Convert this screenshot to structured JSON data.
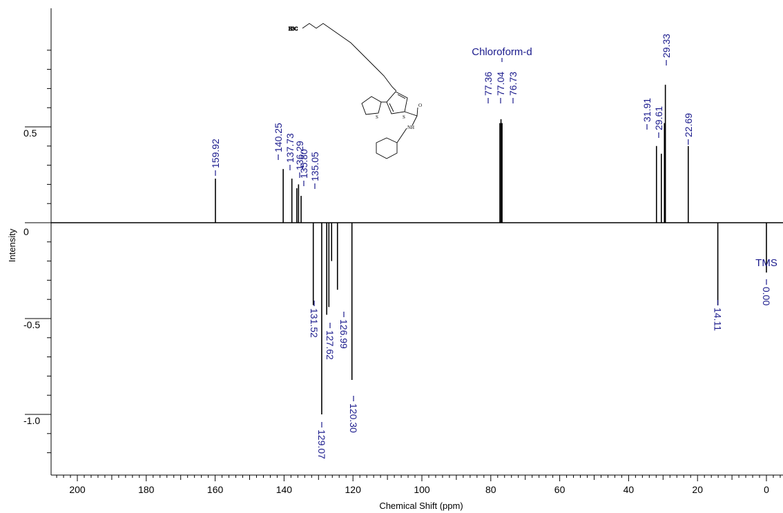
{
  "chart_data": {
    "type": "line",
    "xlabel": "Chemical Shift (ppm)",
    "ylabel": "Intensity",
    "xlim": [
      205,
      -5
    ],
    "ylim": [
      -1.25,
      1.1
    ],
    "x_ticks": [
      200,
      180,
      160,
      140,
      120,
      100,
      80,
      60,
      40,
      20,
      0
    ],
    "y_ticks": [
      {
        "value": 0.5,
        "label": "0.5"
      },
      {
        "value": 0,
        "label": "0"
      },
      {
        "value": -0.5,
        "label": "-0.5"
      },
      {
        "value": -1.0,
        "label": "-1.0"
      }
    ],
    "peaks": [
      {
        "ppm": 159.92,
        "intensity": 0.23,
        "label": "159.92"
      },
      {
        "ppm": 140.25,
        "intensity": 0.28,
        "label": "140.25"
      },
      {
        "ppm": 137.73,
        "intensity": 0.23,
        "label": "137.73"
      },
      {
        "ppm": 136.29,
        "intensity": 0.18,
        "label": "136.29"
      },
      {
        "ppm": 135.8,
        "intensity": 0.2,
        "label": "135.80"
      },
      {
        "ppm": 135.05,
        "intensity": 0.14,
        "label": "135.05"
      },
      {
        "ppm": 131.52,
        "intensity": -0.43,
        "label": "131.52"
      },
      {
        "ppm": 129.07,
        "intensity": -1.0,
        "label": "129.07"
      },
      {
        "ppm": 127.62,
        "intensity": -0.48,
        "label": "127.62"
      },
      {
        "ppm": 126.99,
        "intensity": -0.44,
        "label": "126.99"
      },
      {
        "ppm": 126.2,
        "intensity": -0.2,
        "label": ""
      },
      {
        "ppm": 124.5,
        "intensity": -0.35,
        "label": ""
      },
      {
        "ppm": 120.3,
        "intensity": -0.82,
        "label": "120.30"
      },
      {
        "ppm": 77.36,
        "intensity": 0.52,
        "label": "77.36"
      },
      {
        "ppm": 77.04,
        "intensity": 0.54,
        "label": "77.04"
      },
      {
        "ppm": 76.73,
        "intensity": 0.52,
        "label": "76.73"
      },
      {
        "ppm": 31.91,
        "intensity": 0.4,
        "label": "31.91"
      },
      {
        "ppm": 30.5,
        "intensity": 0.36,
        "label": ""
      },
      {
        "ppm": 29.61,
        "intensity": 0.52,
        "label": "29.61"
      },
      {
        "ppm": 29.33,
        "intensity": 0.72,
        "label": "29.33"
      },
      {
        "ppm": 22.69,
        "intensity": 0.4,
        "label": "22.69"
      },
      {
        "ppm": 14.11,
        "intensity": -0.43,
        "label": "14.11"
      },
      {
        "ppm": 0.0,
        "intensity": -0.26,
        "label": "0.00"
      }
    ],
    "annotations": [
      {
        "text": "Chloroform-d",
        "ppm": 77.04
      },
      {
        "text": "TMS",
        "ppm": 0.0
      }
    ],
    "structure_labels": {
      "methyl": "H3C",
      "sulfur": "S",
      "oxygen": "O",
      "amide": "NH"
    }
  }
}
